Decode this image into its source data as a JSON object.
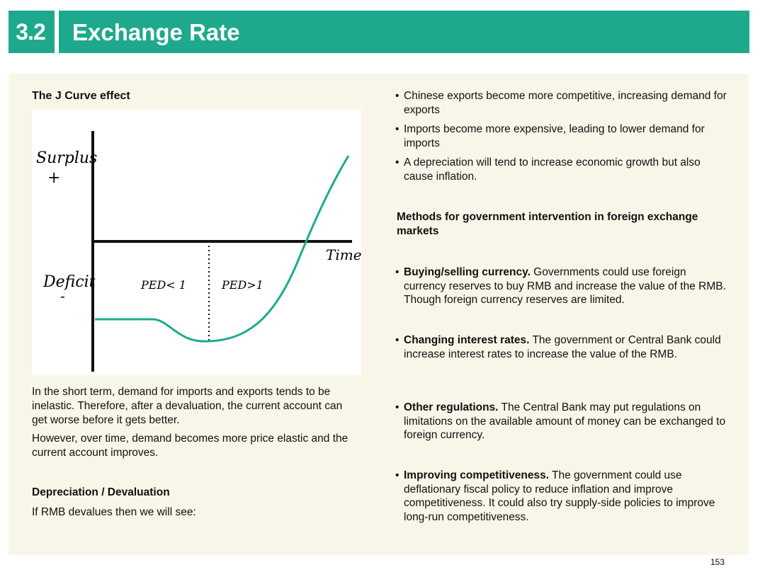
{
  "header": {
    "section_number": "3.2",
    "title": "Exchange Rate"
  },
  "left": {
    "heading": "The J Curve effect",
    "graph": {
      "y_top_label": "Surplus",
      "y_top_sign": "+",
      "y_bottom_label": "Deficit",
      "y_bottom_sign": "-",
      "x_label": "Time",
      "region_left": "PED< 1",
      "region_right": "PED>1",
      "line_color": "#1fa98c"
    },
    "para1": "In the short term, demand for imports and exports tends to be inelastic. Therefore, after a devaluation, the current account can get worse before it gets better.",
    "para2": "However, over time, demand becomes more price elastic and the current account improves.",
    "dep_heading": "Depreciation / Devaluation",
    "dep_text": "If RMB devalues then we will see:"
  },
  "right": {
    "bullets_top": [
      "Chinese exports become more competitive, increasing demand for exports",
      "Imports become more expensive, leading to lower demand for imports",
      "A depreciation will tend to increase economic growth but also cause inflation."
    ],
    "methods_heading": "Methods for government intervention in foreign exchange markets",
    "methods": [
      {
        "bold": "Buying/selling currency.",
        "text": " Governments could use foreign currency reserves to buy RMB and increase the value of the RMB. Though foreign currency reserves are limited."
      },
      {
        "bold": "Changing interest rates.",
        "text": " The government or Central Bank could increase interest rates to increase the value of the RMB."
      },
      {
        "bold": "Other regulations.",
        "text": " The Central Bank may put regulations on limitations on the available amount of money can be exchanged to foreign currency."
      },
      {
        "bold": "Improving competitiveness.",
        "text": " The government could use deflationary fiscal policy to reduce inflation and improve competitiveness. It could also try supply-side policies to improve long-run competitiveness."
      }
    ]
  },
  "footer": {
    "page_number": "153"
  },
  "colors": {
    "accent": "#1fa98c",
    "panel": "#f8f6e9"
  }
}
